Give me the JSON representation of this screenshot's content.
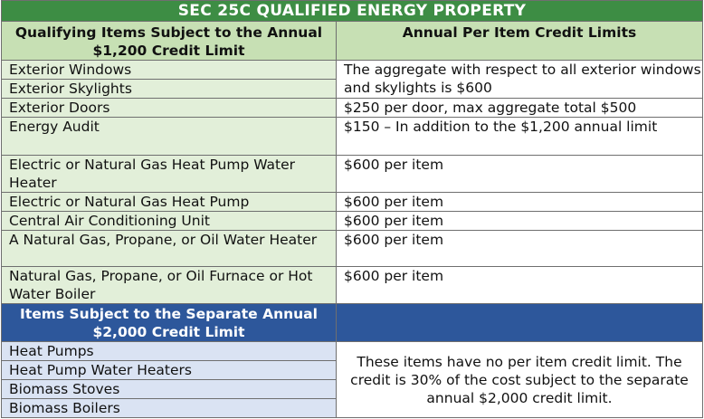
{
  "title": "SEC 25C QUALIFIED ENERGY PROPERTY",
  "header": {
    "col1": "Qualifying Items Subject to the Annual $1,200 Credit Limit",
    "col2": "Annual Per Item Credit Limits"
  },
  "annual_1200": {
    "windows_item": "Exterior Windows",
    "skylights_item": "Exterior Skylights",
    "windows_skylights_limit": "The aggregate with respect to all exterior windows and skylights is $600",
    "doors_item": "Exterior Doors",
    "doors_limit": "$250 per door, max aggregate total $500",
    "audit_item": "Energy Audit",
    "audit_limit": "$150 – In addition to the $1,200 annual limit",
    "hp_water_heater_item": "Electric or Natural Gas Heat Pump Water Heater",
    "hp_water_heater_limit": "$600 per item",
    "heat_pump_item": "Electric or Natural Gas Heat Pump",
    "heat_pump_limit": "$600 per item",
    "central_ac_item": "Central Air Conditioning Unit",
    "central_ac_limit": "$600 per item",
    "water_heater_item": "A Natural Gas, Propane, or Oil Water Heater",
    "water_heater_limit": "$600 per item",
    "furnace_item": "Natural Gas, Propane, or Oil Furnace or Hot Water Boiler",
    "furnace_limit": "$600 per item"
  },
  "annual_2000": {
    "header": "Items Subject to the Separate Annual $2,000 Credit Limit",
    "items": [
      "Heat Pumps",
      "Heat Pump Water Heaters",
      "Biomass Stoves",
      "Biomass Boilers"
    ],
    "note": "These items have no per item credit limit. The credit is 30% of the cost subject to the separate annual $2,000 credit limit."
  },
  "colors": {
    "title_bg": "#3d8d44",
    "header_bg": "#c7e0b4",
    "item_bg": "#e2efd9",
    "section2_header_bg": "#2d579b",
    "section2_item_bg": "#dae3f3"
  }
}
